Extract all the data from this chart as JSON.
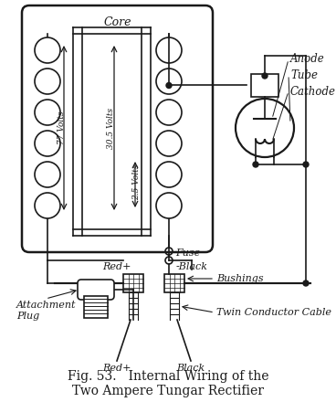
{
  "title_line1": "Fig. 53.   Internal Wiring of the",
  "title_line2": "Two Ampere Tungar Rectifier",
  "title_fontsize": 10,
  "bg_color": "#ffffff",
  "line_color": "#1a1a1a",
  "label_core": "Core",
  "label_anode": "Anode",
  "label_tube": "Tube",
  "label_cathode": "Cathode",
  "label_fuse": "Fuse",
  "label_red": "Red",
  "label_black": "Black",
  "label_bushings": "Bushings",
  "label_twin": "Twin Conductor Cable",
  "label_plug": "Attachment\nPlug",
  "label_77v": "77 Volts",
  "label_305v": "30.5 Volts",
  "label_25v": "2.5 Volts",
  "label_red2": "Red",
  "label_black2": "Black"
}
